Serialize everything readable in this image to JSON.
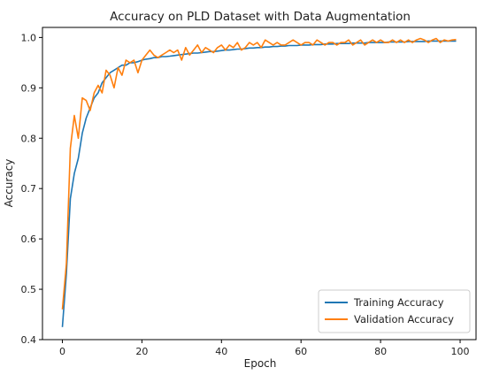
{
  "chart_data": {
    "type": "line",
    "title": "Accuracy on PLD Dataset with Data Augmentation",
    "xlabel": "Epoch",
    "ylabel": "Accuracy",
    "xlim": [
      -5,
      104
    ],
    "ylim": [
      0.4,
      1.02
    ],
    "xticks": [
      0,
      20,
      40,
      60,
      80,
      100
    ],
    "yticks": [
      0.4,
      0.5,
      0.6,
      0.7,
      0.8,
      0.9,
      1.0
    ],
    "xtick_labels": [
      "0",
      "20",
      "40",
      "60",
      "80",
      "100"
    ],
    "ytick_labels": [
      "0.4",
      "0.5",
      "0.6",
      "0.7",
      "0.8",
      "0.9",
      "1.0"
    ],
    "grid": false,
    "legend_position": "bottom-right",
    "series": [
      {
        "name": "Training Accuracy",
        "color": "#1f77b4",
        "x": [
          0,
          1,
          2,
          3,
          4,
          5,
          6,
          7,
          8,
          9,
          10,
          11,
          12,
          13,
          14,
          15,
          16,
          17,
          18,
          19,
          20,
          21,
          22,
          23,
          24,
          25,
          26,
          27,
          28,
          29,
          30,
          31,
          32,
          33,
          34,
          35,
          36,
          37,
          38,
          39,
          40,
          41,
          42,
          43,
          44,
          45,
          46,
          47,
          48,
          49,
          50,
          51,
          52,
          53,
          54,
          55,
          56,
          57,
          58,
          59,
          60,
          61,
          62,
          63,
          64,
          65,
          66,
          67,
          68,
          69,
          70,
          71,
          72,
          73,
          74,
          75,
          76,
          77,
          78,
          79,
          80,
          81,
          82,
          83,
          84,
          85,
          86,
          87,
          88,
          89,
          90,
          91,
          92,
          93,
          94,
          95,
          96,
          97,
          98,
          99
        ],
        "values": [
          0.425,
          0.53,
          0.68,
          0.73,
          0.76,
          0.81,
          0.84,
          0.86,
          0.88,
          0.89,
          0.91,
          0.92,
          0.93,
          0.935,
          0.94,
          0.945,
          0.945,
          0.95,
          0.95,
          0.952,
          0.955,
          0.957,
          0.958,
          0.96,
          0.96,
          0.962,
          0.962,
          0.963,
          0.964,
          0.965,
          0.966,
          0.967,
          0.968,
          0.969,
          0.969,
          0.97,
          0.971,
          0.972,
          0.972,
          0.973,
          0.974,
          0.975,
          0.975,
          0.976,
          0.977,
          0.977,
          0.978,
          0.979,
          0.979,
          0.98,
          0.98,
          0.981,
          0.981,
          0.982,
          0.982,
          0.983,
          0.983,
          0.984,
          0.984,
          0.984,
          0.985,
          0.985,
          0.985,
          0.986,
          0.986,
          0.986,
          0.987,
          0.987,
          0.987,
          0.988,
          0.988,
          0.988,
          0.988,
          0.989,
          0.989,
          0.989,
          0.989,
          0.99,
          0.99,
          0.99,
          0.99,
          0.99,
          0.991,
          0.991,
          0.991,
          0.991,
          0.991,
          0.992,
          0.992,
          0.992,
          0.992,
          0.992,
          0.993,
          0.993,
          0.993,
          0.993,
          0.993,
          0.993,
          0.993,
          0.993
        ]
      },
      {
        "name": "Validation Accuracy",
        "color": "#ff7f0e",
        "x": [
          0,
          1,
          2,
          3,
          4,
          5,
          6,
          7,
          8,
          9,
          10,
          11,
          12,
          13,
          14,
          15,
          16,
          17,
          18,
          19,
          20,
          21,
          22,
          23,
          24,
          25,
          26,
          27,
          28,
          29,
          30,
          31,
          32,
          33,
          34,
          35,
          36,
          37,
          38,
          39,
          40,
          41,
          42,
          43,
          44,
          45,
          46,
          47,
          48,
          49,
          50,
          51,
          52,
          53,
          54,
          55,
          56,
          57,
          58,
          59,
          60,
          61,
          62,
          63,
          64,
          65,
          66,
          67,
          68,
          69,
          70,
          71,
          72,
          73,
          74,
          75,
          76,
          77,
          78,
          79,
          80,
          81,
          82,
          83,
          84,
          85,
          86,
          87,
          88,
          89,
          90,
          91,
          92,
          93,
          94,
          95,
          96,
          97,
          98,
          99
        ],
        "values": [
          0.46,
          0.55,
          0.78,
          0.845,
          0.8,
          0.88,
          0.875,
          0.855,
          0.89,
          0.905,
          0.89,
          0.935,
          0.925,
          0.9,
          0.94,
          0.925,
          0.955,
          0.95,
          0.955,
          0.93,
          0.955,
          0.965,
          0.975,
          0.965,
          0.96,
          0.965,
          0.97,
          0.975,
          0.97,
          0.975,
          0.955,
          0.98,
          0.965,
          0.975,
          0.985,
          0.97,
          0.98,
          0.975,
          0.97,
          0.98,
          0.985,
          0.975,
          0.985,
          0.98,
          0.99,
          0.975,
          0.98,
          0.99,
          0.985,
          0.99,
          0.98,
          0.995,
          0.99,
          0.985,
          0.99,
          0.985,
          0.985,
          0.99,
          0.995,
          0.99,
          0.985,
          0.99,
          0.99,
          0.985,
          0.995,
          0.99,
          0.985,
          0.99,
          0.99,
          0.985,
          0.99,
          0.99,
          0.995,
          0.985,
          0.99,
          0.995,
          0.985,
          0.99,
          0.995,
          0.99,
          0.995,
          0.99,
          0.99,
          0.995,
          0.99,
          0.995,
          0.99,
          0.995,
          0.99,
          0.995,
          0.998,
          0.995,
          0.99,
          0.995,
          0.998,
          0.99,
          0.995,
          0.993,
          0.995,
          0.996
        ]
      }
    ]
  }
}
